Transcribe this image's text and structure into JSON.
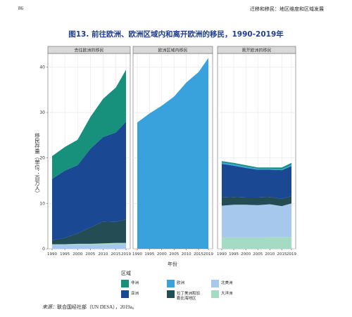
{
  "page": {
    "page_number": "86",
    "running_header": "迁移和移民：地区维度和区域发展",
    "figure_title": "图13. 前往欧洲、欧洲区域内和离开欧洲的移民，1990-2019年",
    "source_label": "来源：",
    "source_text": "联合国经社部（UN DESA），2019a。"
  },
  "colors": {
    "africa": "#17917c",
    "europe": "#39a2dd",
    "asia": "#1a4893",
    "latin_america": "#234c55",
    "northern_america": "#a5c8ec",
    "oceania": "#a5dbc5",
    "panel_bg": "#ffffff",
    "strip_bg": "#d9d9d9",
    "grid": "#e6e6e6",
    "title": "#1f3e8f"
  },
  "chart_data": {
    "type": "area",
    "stacked": true,
    "ylabel": "移民存量（单位：百万人）",
    "xlabel": "年份",
    "ylim": [
      0,
      43
    ],
    "yticks": [
      0,
      10,
      20,
      30,
      40
    ],
    "x": [
      1990,
      1995,
      2000,
      2005,
      2010,
      2015,
      2019
    ],
    "xtick_labels": [
      "1990",
      "1995",
      "2000",
      "2005",
      "2010",
      "2015",
      "2019"
    ],
    "grid": true,
    "legend": {
      "title": "区域",
      "position": "bottom",
      "entries": [
        {
          "key": "africa",
          "label": "非洲"
        },
        {
          "key": "europe",
          "label": "欧洲"
        },
        {
          "key": "northern_america",
          "label": "北美洲"
        },
        {
          "key": "asia",
          "label": "亚洲"
        },
        {
          "key": "latin_america",
          "label": "拉丁美洲和加勒比海地区"
        },
        {
          "key": "oceania",
          "label": "大洋洲"
        }
      ]
    },
    "panels": [
      {
        "title": "去往欧洲的移民",
        "series": [
          {
            "key": "northern_america",
            "values": [
              0.9,
              0.9,
              0.9,
              0.9,
              0.9,
              1.0,
              1.0
            ]
          },
          {
            "key": "oceania",
            "values": [
              0.1,
              0.1,
              0.2,
              0.2,
              0.3,
              0.3,
              0.3
            ]
          },
          {
            "key": "latin_america",
            "values": [
              0.9,
              1.4,
              2.3,
              3.6,
              4.8,
              4.6,
              5.2
            ]
          },
          {
            "key": "asia",
            "values": [
              13.5,
              14.8,
              15.0,
              17.3,
              18.6,
              19.7,
              21.5
            ]
          },
          {
            "key": "africa",
            "values": [
              5.0,
              5.2,
              5.6,
              7.0,
              8.4,
              9.9,
              11.4
            ]
          }
        ]
      },
      {
        "title": "欧洲区域内移民",
        "series": [
          {
            "key": "europe",
            "values": [
              27.8,
              29.8,
              31.5,
              33.5,
              36.6,
              38.9,
              42.0
            ]
          }
        ]
      },
      {
        "title": "离开欧洲的移民",
        "series": [
          {
            "key": "oceania",
            "values": [
              2.5,
              2.5,
              2.5,
              2.5,
              2.6,
              2.6,
              2.6
            ]
          },
          {
            "key": "northern_america",
            "values": [
              7.0,
              7.2,
              7.2,
              7.1,
              7.2,
              6.8,
              7.4
            ]
          },
          {
            "key": "latin_america",
            "values": [
              1.8,
              1.7,
              1.6,
              1.7,
              1.6,
              1.6,
              1.6
            ]
          },
          {
            "key": "asia",
            "values": [
              7.4,
              6.9,
              6.5,
              6.1,
              6.0,
              6.3,
              6.6
            ]
          },
          {
            "key": "europe",
            "values": [
              0.3,
              0.3,
              0.3,
              0.2,
              0.2,
              0.2,
              0.3
            ]
          },
          {
            "key": "africa",
            "values": [
              0.3,
              0.3,
              0.3,
              0.3,
              0.3,
              0.4,
              0.4
            ]
          }
        ]
      }
    ]
  }
}
